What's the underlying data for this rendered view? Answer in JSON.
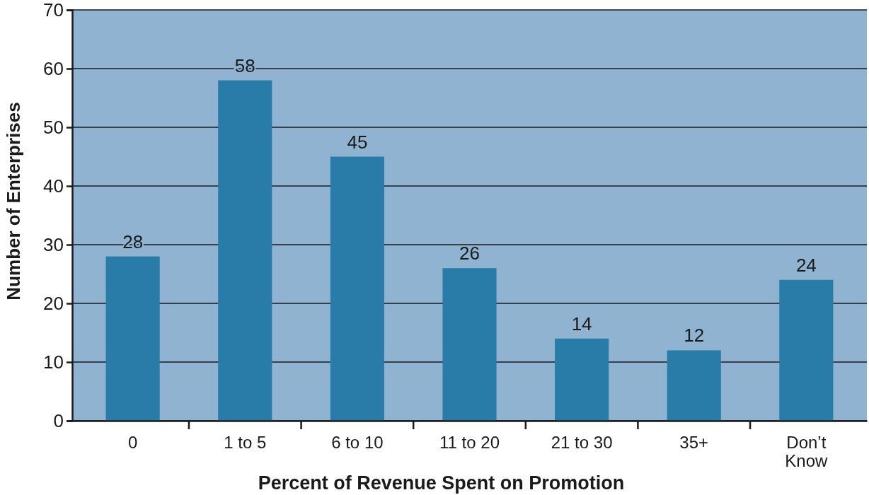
{
  "chart_data": {
    "type": "bar",
    "xlabel": "Percent of Revenue Spent on Promotion",
    "ylabel": "Number of Enterprises",
    "categories": [
      "0",
      "1 to 5",
      "6 to 10",
      "11 to 20",
      "21 to 30",
      "35+",
      "Don’t Know"
    ],
    "values": [
      28,
      58,
      45,
      26,
      14,
      12,
      24
    ],
    "color": "#2a7ca8",
    "ylim": [
      0,
      70
    ],
    "yticks": [
      0,
      10,
      20,
      30,
      40,
      50,
      60,
      70
    ],
    "grid": "y",
    "data_labels": true
  }
}
